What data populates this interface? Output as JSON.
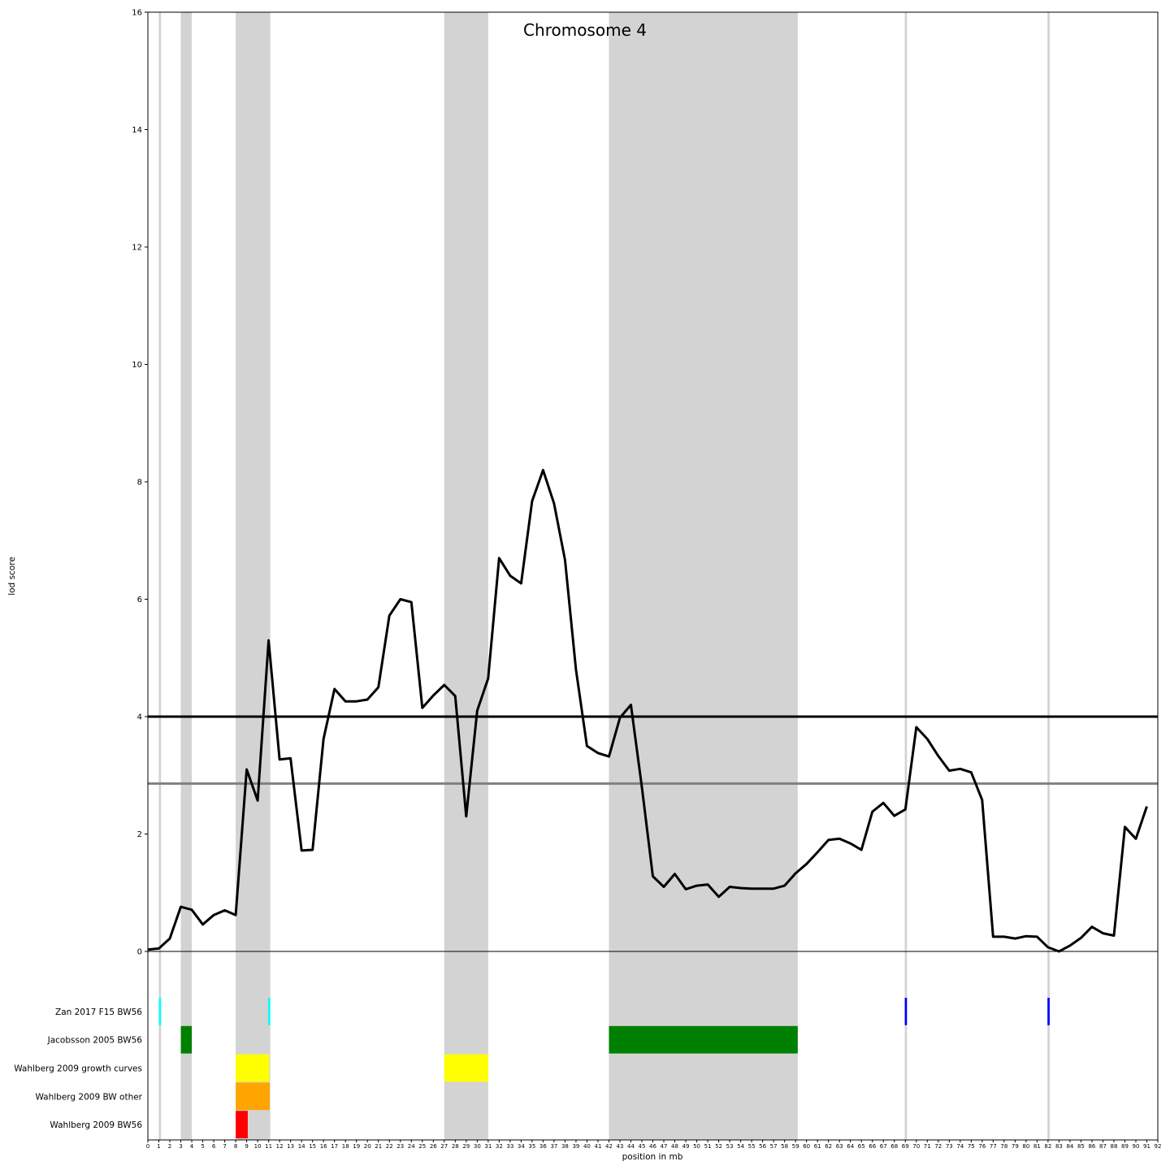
{
  "chart_data": {
    "type": "line",
    "title": "Chromosome 4",
    "xlabel": "position in mb",
    "ylabel": "lod score",
    "xlim": [
      0,
      92
    ],
    "ylim": [
      0,
      16
    ],
    "x_ticks": [
      0,
      1,
      2,
      3,
      4,
      5,
      6,
      7,
      8,
      9,
      10,
      11,
      12,
      13,
      14,
      15,
      16,
      17,
      18,
      19,
      20,
      21,
      22,
      23,
      24,
      25,
      26,
      27,
      28,
      29,
      30,
      31,
      32,
      33,
      34,
      35,
      36,
      37,
      38,
      39,
      40,
      41,
      42,
      43,
      44,
      45,
      46,
      47,
      48,
      49,
      50,
      51,
      52,
      53,
      54,
      55,
      56,
      57,
      58,
      59,
      60,
      61,
      62,
      63,
      64,
      65,
      66,
      67,
      68,
      69,
      70,
      71,
      72,
      73,
      74,
      75,
      76,
      77,
      78,
      79,
      80,
      81,
      82,
      83,
      84,
      85,
      86,
      87,
      88,
      89,
      90,
      91,
      92
    ],
    "y_ticks": [
      0,
      2,
      4,
      6,
      8,
      10,
      12,
      14,
      16
    ],
    "series": [
      {
        "x": [
          0,
          1,
          2,
          3,
          4,
          5,
          6,
          7,
          8,
          9,
          10,
          11,
          12,
          13,
          14,
          15,
          16,
          17,
          18,
          19,
          20,
          21,
          22,
          23,
          24,
          25,
          26,
          27,
          28,
          29,
          30,
          31,
          32,
          33,
          34,
          35,
          36,
          37,
          38,
          39,
          40,
          41,
          42,
          43,
          44,
          45,
          46,
          47,
          48,
          49,
          50,
          51,
          52,
          53,
          54,
          55,
          56,
          57,
          58,
          59,
          60,
          61,
          62,
          63,
          64,
          65,
          66,
          67,
          68,
          69,
          70,
          71,
          72,
          73,
          74,
          75,
          76,
          77,
          78,
          79,
          80,
          81,
          82,
          83,
          84,
          85,
          86,
          87,
          88,
          89,
          90,
          91
        ],
        "values": [
          0.03,
          0.05,
          0.22,
          0.76,
          0.71,
          0.46,
          0.62,
          0.7,
          0.62,
          3.1,
          2.57,
          5.3,
          3.27,
          3.29,
          1.72,
          1.73,
          3.62,
          4.47,
          4.26,
          4.26,
          4.29,
          4.5,
          5.72,
          6.0,
          5.95,
          4.15,
          4.36,
          4.54,
          4.35,
          2.3,
          4.1,
          4.65,
          6.7,
          6.4,
          6.27,
          7.67,
          8.2,
          7.63,
          6.67,
          4.8,
          3.5,
          3.38,
          3.32,
          3.98,
          4.2,
          2.8,
          1.28,
          1.1,
          1.32,
          1.06,
          1.12,
          1.14,
          0.93,
          1.1,
          1.08,
          1.07,
          1.07,
          1.07,
          1.12,
          1.33,
          1.49,
          1.69,
          1.9,
          1.92,
          1.84,
          1.73,
          2.38,
          2.53,
          2.31,
          2.42,
          3.82,
          3.62,
          3.33,
          3.08,
          3.11,
          3.05,
          2.58,
          0.25,
          0.25,
          0.22,
          0.26,
          0.25,
          0.07,
          0.0,
          0.1,
          0.23,
          0.42,
          0.31,
          0.27,
          2.12,
          1.92,
          2.47
        ],
        "color": "#000000"
      }
    ],
    "thresholds": [
      {
        "value": 4.0,
        "color": "#000000"
      },
      {
        "value": 2.86,
        "color": "#808080"
      }
    ],
    "shaded_regions": [
      {
        "start": 1.0,
        "end": 1.2
      },
      {
        "start": 3.0,
        "end": 4.0
      },
      {
        "start": 8.0,
        "end": 11.15
      },
      {
        "start": 27.0,
        "end": 31.0
      },
      {
        "start": 42.0,
        "end": 59.2
      },
      {
        "start": 68.95,
        "end": 69.15
      },
      {
        "start": 81.95,
        "end": 82.15
      }
    ],
    "tracks": [
      {
        "label": "Zan 2017 F15 BW56",
        "intervals": [
          {
            "start": 1.0,
            "end": 1.2,
            "color": "#00ffff"
          },
          {
            "start": 10.95,
            "end": 11.15,
            "color": "#00ffff"
          },
          {
            "start": 68.95,
            "end": 69.15,
            "color": "#0000ff"
          },
          {
            "start": 81.95,
            "end": 82.15,
            "color": "#0000ff"
          }
        ]
      },
      {
        "label": "Jacobsson 2005 BW56",
        "intervals": [
          {
            "start": 3.0,
            "end": 4.0,
            "color": "#008000"
          },
          {
            "start": 42.0,
            "end": 59.2,
            "color": "#008000"
          }
        ]
      },
      {
        "label": "Wahlberg 2009 growth curves",
        "intervals": [
          {
            "start": 8.0,
            "end": 11.05,
            "color": "#ffff00"
          },
          {
            "start": 27.0,
            "end": 31.0,
            "color": "#ffff00"
          }
        ]
      },
      {
        "label": "Wahlberg 2009 BW other",
        "intervals": [
          {
            "start": 8.0,
            "end": 11.1,
            "color": "#ffa500"
          }
        ]
      },
      {
        "label": "Wahlberg 2009 BW56",
        "intervals": [
          {
            "start": 8.0,
            "end": 9.1,
            "color": "#ff0000"
          }
        ]
      }
    ],
    "grid": false
  }
}
